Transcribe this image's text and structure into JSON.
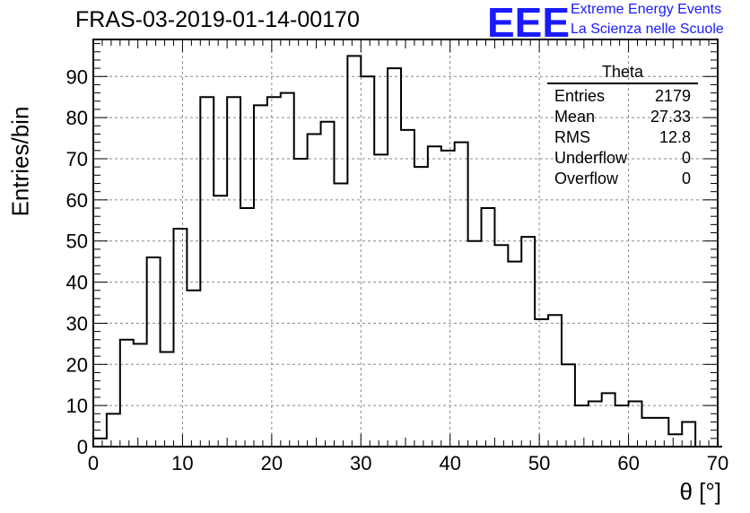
{
  "header": {
    "title": "FRAS-03-2019-01-14-00170",
    "logo_text": "EEE",
    "tagline1": "Extreme Energy Events",
    "tagline2": "La Scienza nelle Scuole",
    "logo_color": "#1a1aff"
  },
  "chart_data": {
    "type": "histogram",
    "xlabel": "θ [°]",
    "ylabel": "Entries/bin",
    "xlim": [
      0,
      70
    ],
    "ylim": [
      0,
      99
    ],
    "xticks": [
      "0",
      "10",
      "20",
      "30",
      "40",
      "50",
      "60",
      "70"
    ],
    "yticks": [
      "0",
      "10",
      "20",
      "30",
      "40",
      "50",
      "60",
      "70",
      "80",
      "90"
    ],
    "grid": true,
    "bin_width": 1.5,
    "bin_edges_start": 0,
    "values": [
      2,
      8,
      26,
      25,
      46,
      23,
      53,
      38,
      85,
      61,
      85,
      58,
      83,
      85,
      86,
      70,
      76,
      79,
      64,
      95,
      90,
      71,
      92,
      77,
      68,
      73,
      72,
      74,
      50,
      58,
      49,
      45,
      51,
      31,
      32,
      20,
      10,
      11,
      13,
      10,
      11,
      7,
      7,
      3,
      6,
      0,
      0
    ]
  },
  "stats_box": {
    "title": "Theta",
    "rows": [
      {
        "label": "Entries",
        "value": "2179"
      },
      {
        "label": "Mean",
        "value": "27.33"
      },
      {
        "label": "RMS",
        "value": "12.8"
      },
      {
        "label": "Underflow",
        "value": "0"
      },
      {
        "label": "Overflow",
        "value": "0"
      }
    ]
  }
}
